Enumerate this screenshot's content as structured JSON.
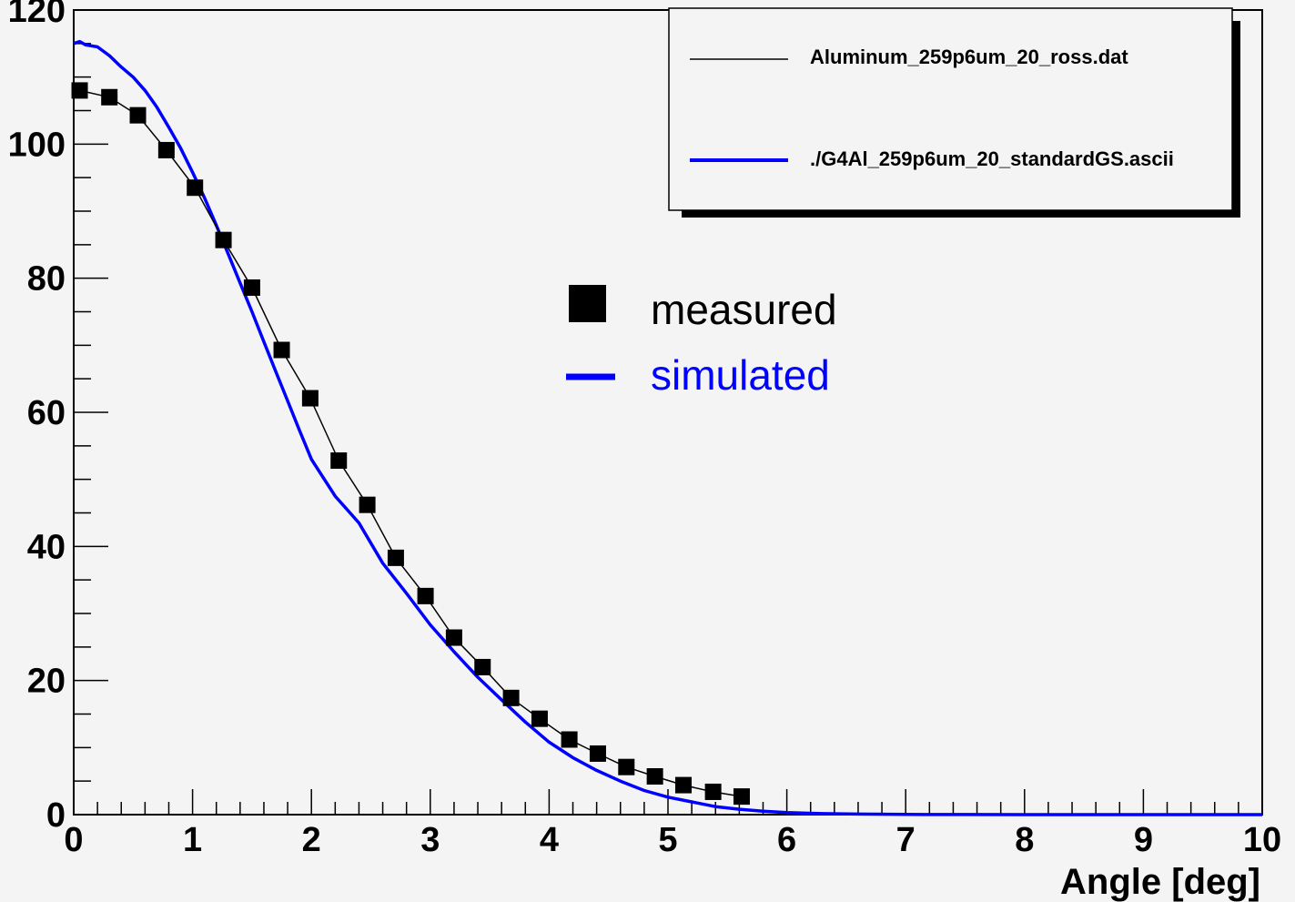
{
  "chart_data": {
    "type": "line",
    "xlabel": "Angle [deg]",
    "ylabel": "",
    "xlim": [
      0,
      10
    ],
    "ylim": [
      0,
      120
    ],
    "x_ticks": [
      "0",
      "1",
      "2",
      "3",
      "4",
      "5",
      "6",
      "7",
      "8",
      "9",
      "10"
    ],
    "y_ticks": [
      "0",
      "20",
      "40",
      "60",
      "80",
      "100",
      "120"
    ],
    "legend": {
      "position": "top-right",
      "entries": [
        {
          "label": "Aluminum_259p6um_20_ross.dat",
          "color": "#000000"
        },
        {
          "label": "./G4Al_259p6um_20_standardGS.ascii",
          "color": "#0000ff"
        }
      ]
    },
    "annotations": [
      {
        "text": "measured",
        "color": "#000000",
        "marker": "square"
      },
      {
        "text": "simulated",
        "color": "#0000ff",
        "marker": "line"
      }
    ],
    "series": [
      {
        "name": "Aluminum_259p6um_20_ross.dat",
        "color": "#000000",
        "marker": "square",
        "x": [
          0.05,
          0.3,
          0.54,
          0.78,
          1.02,
          1.26,
          1.5,
          1.75,
          1.99,
          2.23,
          2.47,
          2.71,
          2.96,
          3.2,
          3.44,
          3.68,
          3.92,
          4.17,
          4.41,
          4.65,
          4.89,
          5.13,
          5.38,
          5.62
        ],
        "y": [
          108,
          107,
          104.3,
          99.1,
          93.5,
          85.7,
          78.6,
          69.3,
          62.1,
          52.8,
          46.2,
          38.3,
          32.6,
          26.4,
          22.0,
          17.4,
          14.3,
          11.2,
          9.1,
          7.1,
          5.7,
          4.4,
          3.4,
          2.7
        ]
      },
      {
        "name": "./G4Al_259p6um_20_standardGS.ascii",
        "color": "#0000ff",
        "marker": "none",
        "x": [
          0,
          0.05,
          0.1,
          0.2,
          0.3,
          0.4,
          0.5,
          0.6,
          0.7,
          0.8,
          0.9,
          1.0,
          1.1,
          1.2,
          1.3,
          1.4,
          1.5,
          1.6,
          1.7,
          1.8,
          1.9,
          2.0,
          2.2,
          2.4,
          2.6,
          2.8,
          3.0,
          3.2,
          3.4,
          3.6,
          3.8,
          4.0,
          4.2,
          4.4,
          4.6,
          4.8,
          5.0,
          5.2,
          5.4,
          5.6,
          5.8,
          6.0,
          6.3,
          6.6,
          7.0,
          7.5,
          8.0,
          9.0,
          10.0
        ],
        "y": [
          115,
          115.3,
          114.8,
          114.5,
          113.2,
          111.5,
          110.0,
          108.0,
          105.5,
          102.5,
          99.4,
          95.8,
          92.0,
          87.9,
          83.6,
          79.3,
          75.0,
          70.5,
          66.1,
          61.7,
          57.3,
          53.0,
          47.5,
          43.5,
          37.5,
          33.0,
          28.3,
          24.3,
          20.5,
          17.1,
          13.8,
          10.8,
          8.5,
          6.6,
          5.0,
          3.6,
          2.6,
          1.9,
          1.2,
          0.8,
          0.5,
          0.3,
          0.15,
          0.08,
          0.03,
          0.01,
          0,
          0,
          0
        ]
      }
    ]
  }
}
